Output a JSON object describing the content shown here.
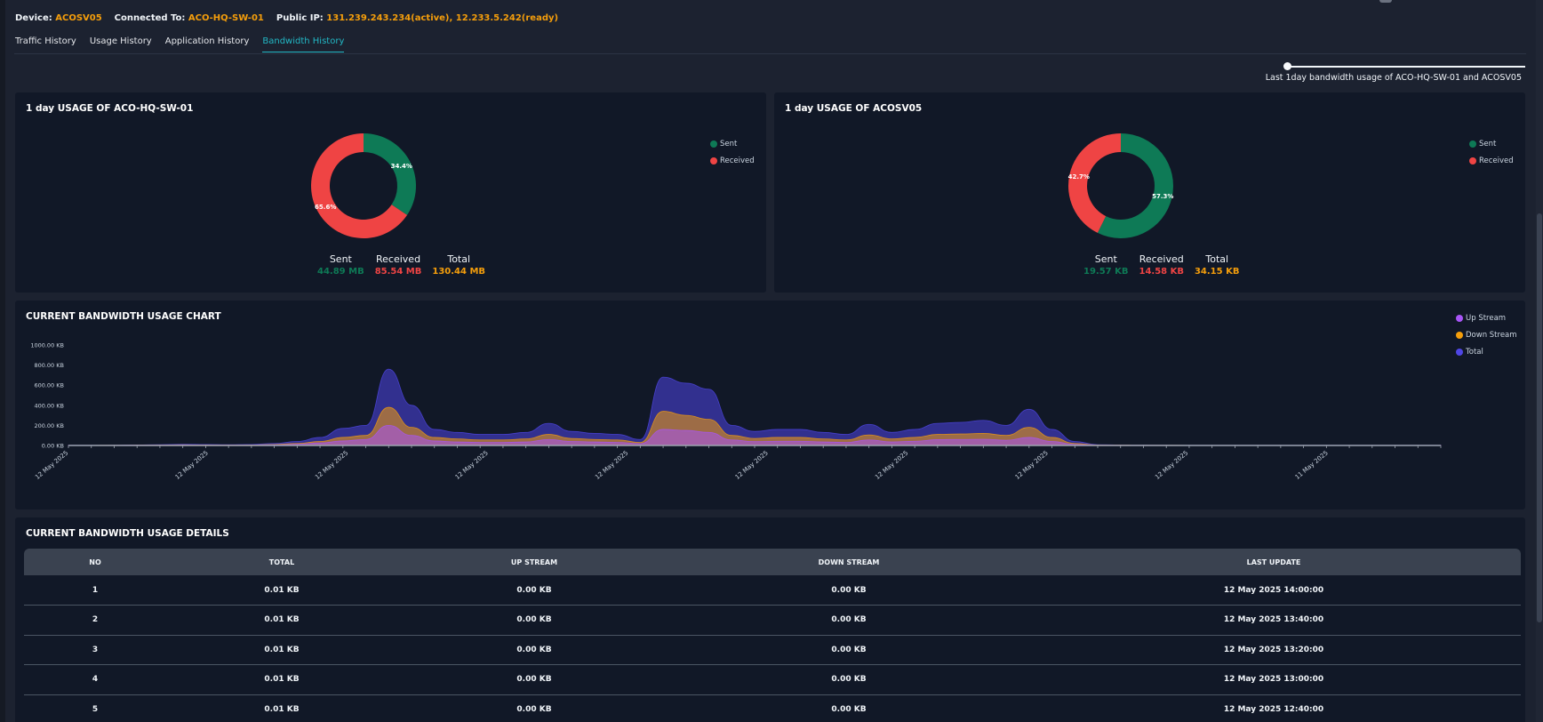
{
  "header": {
    "device_label": "Device:",
    "device_value": "ACOSV05",
    "connected_label": "Connected To:",
    "connected_value": "ACO-HQ-SW-01",
    "public_ip_label": "Public IP:",
    "public_ip_value": "131.239.243.234(active), 12.233.5.242(ready)"
  },
  "tabs": [
    {
      "label": "Traffic History",
      "active": false
    },
    {
      "label": "Usage History",
      "active": false
    },
    {
      "label": "Application History",
      "active": false
    },
    {
      "label": "Bandwidth History",
      "active": true
    }
  ],
  "range": {
    "caption": "Last 1day bandwidth usage of ACO-HQ-SW-01 and ACOSV05"
  },
  "switch_usage": {
    "title": "1 day USAGE OF ACO-HQ-SW-01",
    "legend": {
      "sent": "Sent",
      "received": "Received"
    },
    "sent_pct": 34.4,
    "received_pct": 65.6,
    "sent_pct_label": "34.4%",
    "received_pct_label": "65.6%",
    "stats": {
      "sent_label": "Sent",
      "sent_value": "44.89 MB",
      "received_label": "Received",
      "received_value": "85.54 MB",
      "total_label": "Total",
      "total_value": "130.44 MB"
    }
  },
  "device_usage": {
    "title": "1 day USAGE OF ACOSV05",
    "legend": {
      "sent": "Sent",
      "received": "Received"
    },
    "sent_pct": 57.3,
    "received_pct": 42.7,
    "sent_pct_label": "57.3%",
    "received_pct_label": "42.7%",
    "stats": {
      "sent_label": "Sent",
      "sent_value": "19.57 KB",
      "received_label": "Received",
      "received_value": "14.58 KB",
      "total_label": "Total",
      "total_value": "34.15 KB"
    }
  },
  "colors": {
    "sent": "#0e7a56",
    "received": "#ef4444",
    "total_value": "#f59e0b",
    "upstream": "#a855f7",
    "downstream": "#f59e0b",
    "total_series": "#4f46e5",
    "accent": "#22b8c5"
  },
  "bandwidth_chart": {
    "title": "CURRENT BANDWIDTH USAGE CHART",
    "legend": {
      "upstream": "Up Stream",
      "downstream": "Down Stream",
      "total": "Total"
    }
  },
  "chart_data": {
    "type": "area",
    "title": "CURRENT BANDWIDTH USAGE CHART",
    "xlabel": "",
    "ylabel": "",
    "ylim": [
      0,
      1000
    ],
    "y_ticks": [
      "0.00 KB",
      "200.00 KB",
      "400.00 KB",
      "600.00 KB",
      "800.00 KB",
      "1000.00 KB"
    ],
    "x_tick_labels": [
      "12 May 2025",
      "12 May 2025",
      "12 May 2025",
      "12 May 2025",
      "12 May 2025",
      "12 May 2025",
      "12 May 2025",
      "12 May 2025",
      "12 May 2025",
      "11 May 2025"
    ],
    "series": [
      {
        "name": "Total",
        "values": [
          2,
          2,
          3,
          5,
          8,
          12,
          10,
          8,
          10,
          20,
          40,
          80,
          170,
          200,
          760,
          400,
          160,
          130,
          110,
          110,
          130,
          220,
          140,
          120,
          110,
          60,
          680,
          620,
          560,
          200,
          140,
          160,
          160,
          130,
          110,
          210,
          130,
          160,
          220,
          230,
          250,
          200,
          360,
          160,
          40,
          8,
          5,
          4,
          3,
          2,
          2,
          2,
          2,
          2,
          2,
          2,
          2,
          2,
          2,
          2,
          2
        ]
      },
      {
        "name": "Down Stream",
        "values": [
          1,
          1,
          2,
          3,
          4,
          6,
          5,
          4,
          5,
          10,
          20,
          40,
          80,
          100,
          380,
          180,
          80,
          65,
          55,
          55,
          65,
          110,
          70,
          60,
          55,
          30,
          340,
          300,
          260,
          100,
          70,
          80,
          80,
          65,
          55,
          105,
          65,
          80,
          110,
          115,
          120,
          100,
          180,
          80,
          20,
          4,
          3,
          2,
          2,
          1,
          1,
          1,
          1,
          1,
          1,
          1,
          1,
          1,
          1,
          1,
          1
        ]
      },
      {
        "name": "Up Stream",
        "values": [
          0.5,
          0.5,
          1,
          2,
          3,
          4,
          3,
          3,
          3,
          6,
          12,
          25,
          45,
          60,
          200,
          100,
          45,
          35,
          30,
          30,
          35,
          60,
          40,
          35,
          30,
          18,
          160,
          150,
          130,
          55,
          38,
          42,
          42,
          35,
          30,
          55,
          35,
          42,
          58,
          60,
          62,
          52,
          80,
          40,
          10,
          2,
          1,
          1,
          1,
          0.5,
          0.5,
          0.5,
          0.5,
          0.5,
          0.5,
          0.5,
          0.5,
          0.5,
          0.5,
          0.5,
          0.5
        ]
      }
    ]
  },
  "details": {
    "title": "CURRENT BANDWIDTH USAGE DETAILS",
    "columns": [
      "NO",
      "TOTAL",
      "UP STREAM",
      "DOWN STREAM",
      "LAST UPDATE"
    ],
    "rows": [
      [
        "1",
        "0.01 KB",
        "0.00 KB",
        "0.00 KB",
        "12 May 2025 14:00:00"
      ],
      [
        "2",
        "0.01 KB",
        "0.00 KB",
        "0.00 KB",
        "12 May 2025 13:40:00"
      ],
      [
        "3",
        "0.01 KB",
        "0.00 KB",
        "0.00 KB",
        "12 May 2025 13:20:00"
      ],
      [
        "4",
        "0.01 KB",
        "0.00 KB",
        "0.00 KB",
        "12 May 2025 13:00:00"
      ],
      [
        "5",
        "0.01 KB",
        "0.00 KB",
        "0.00 KB",
        "12 May 2025 12:40:00"
      ]
    ]
  }
}
